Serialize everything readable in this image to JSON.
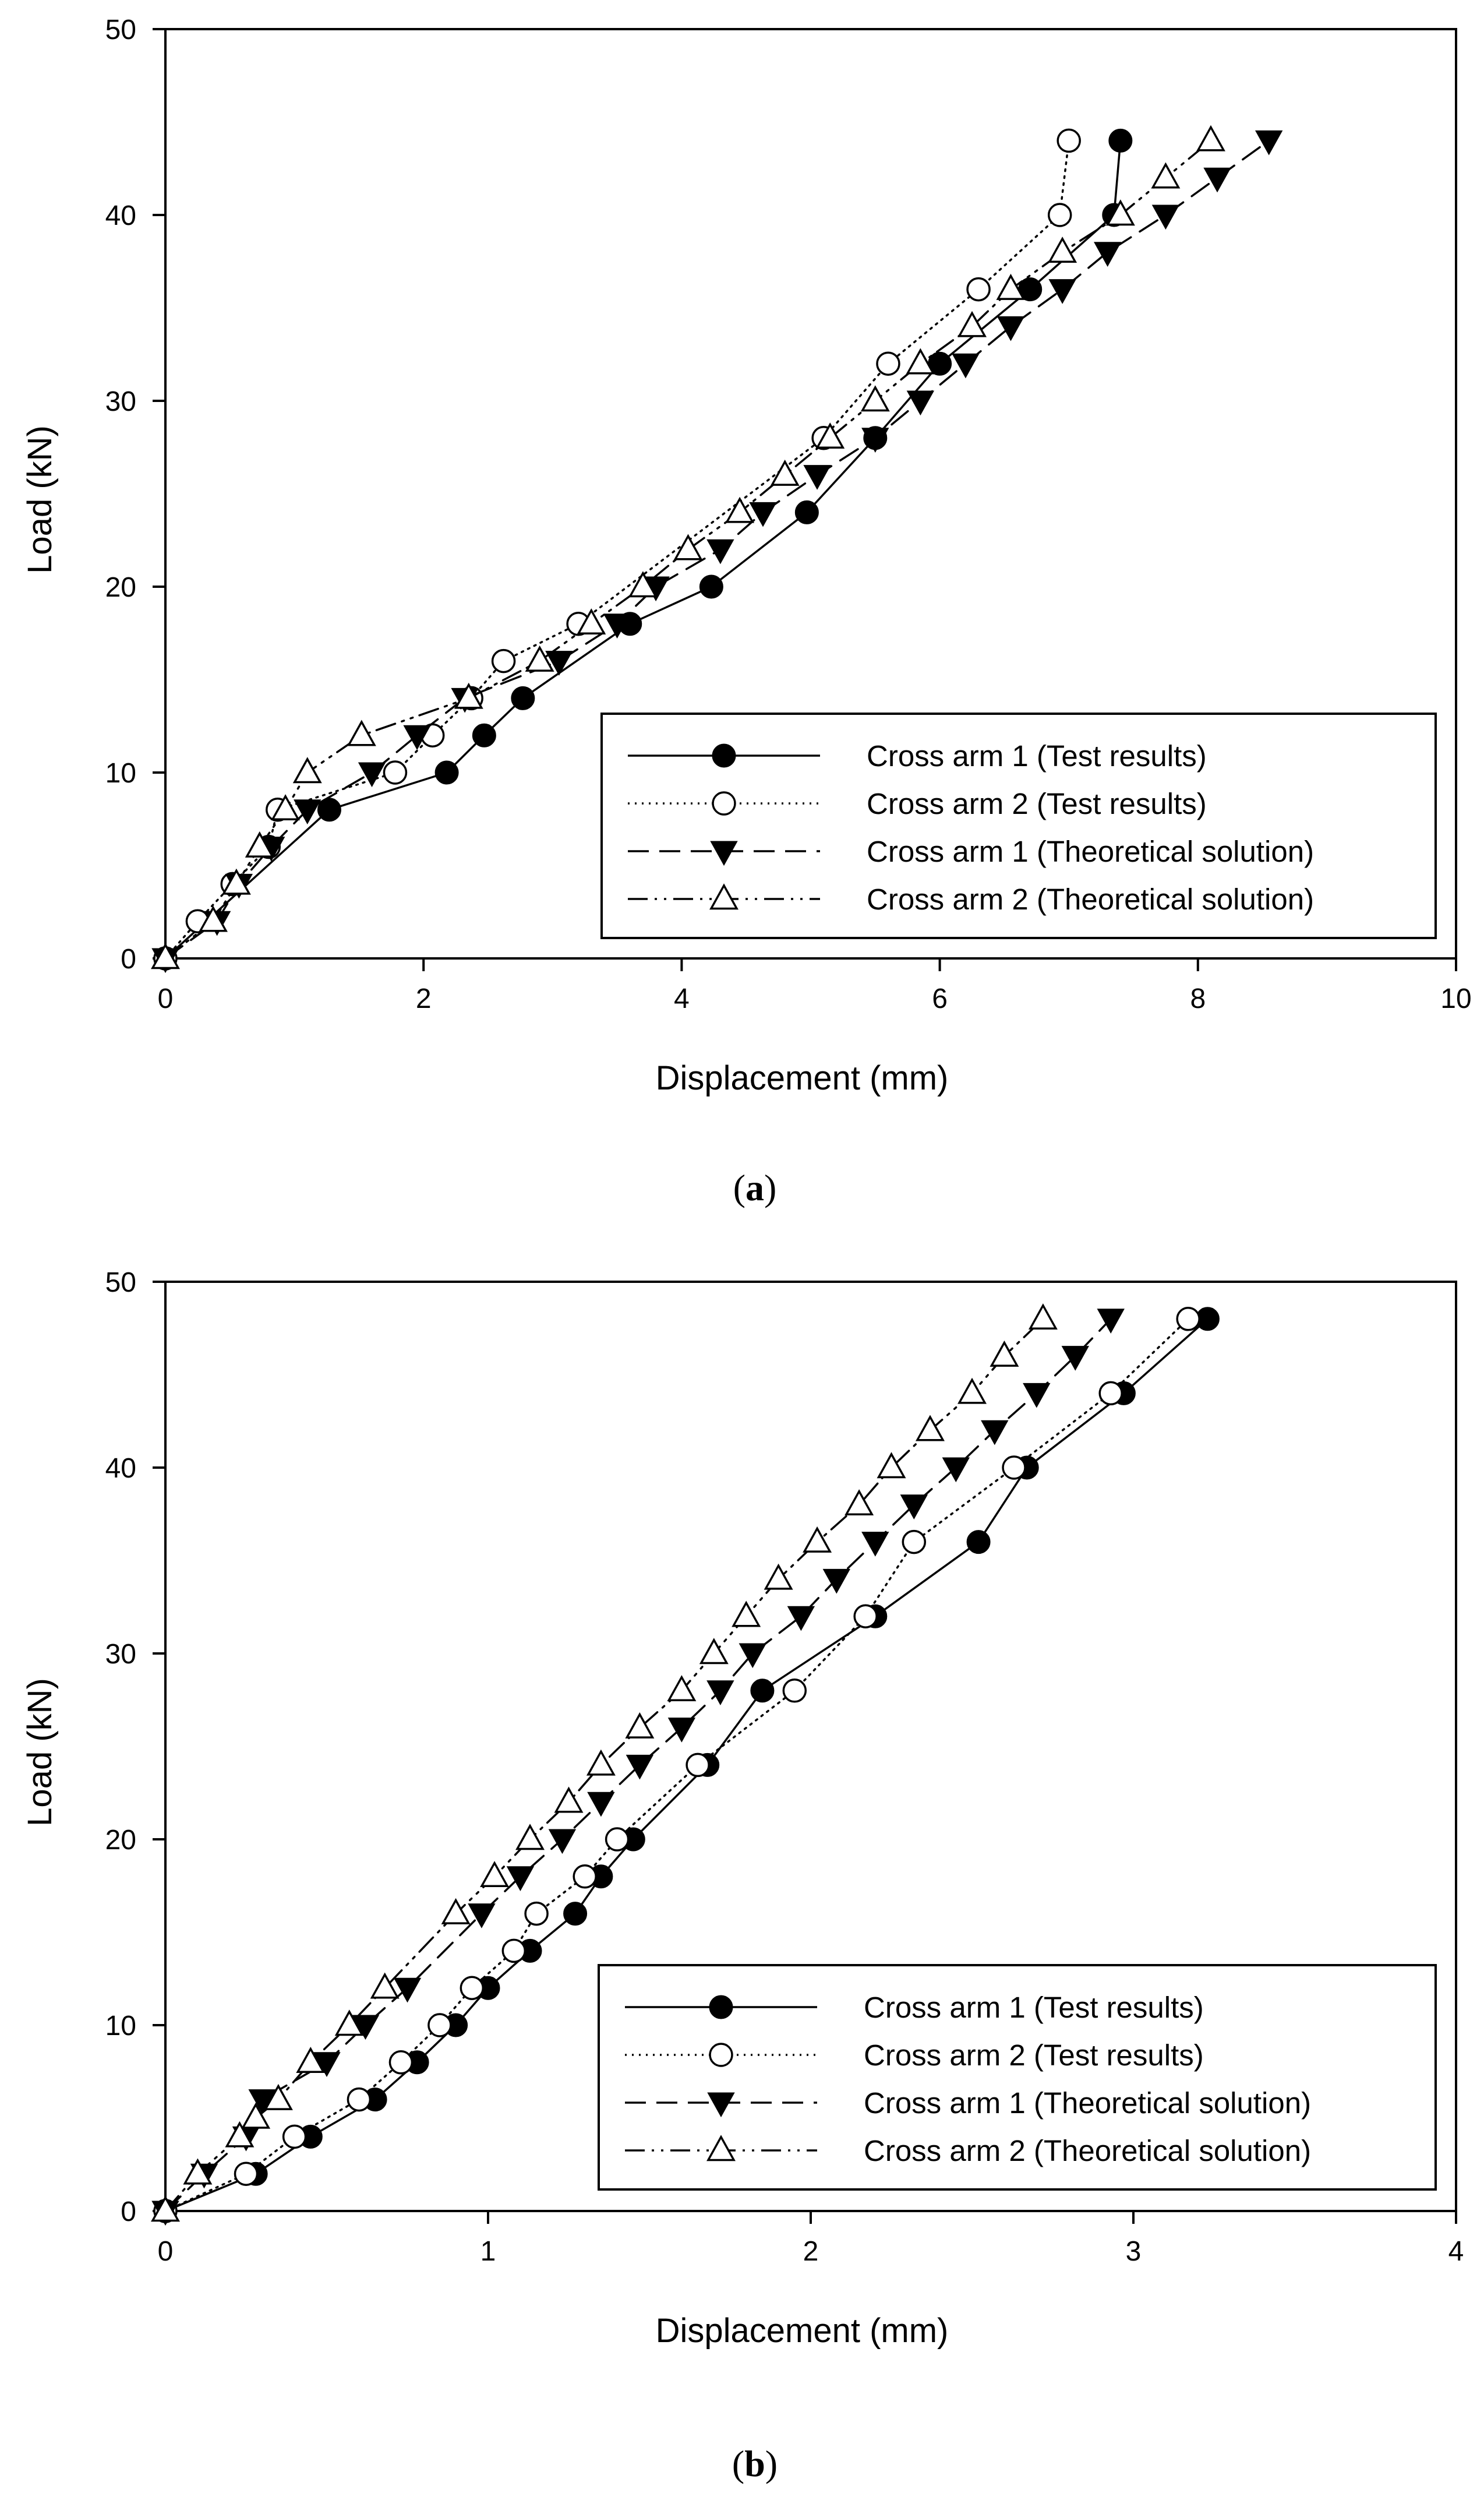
{
  "chart_data": [
    {
      "type": "line",
      "caption": "(a)",
      "caption_letter": "a",
      "xlabel": "Displacement (mm)",
      "ylabel": "Load (kN)",
      "xlim": [
        0,
        10
      ],
      "ylim": [
        0,
        50
      ],
      "xticks": [
        0,
        2,
        4,
        6,
        8,
        10
      ],
      "yticks": [
        0,
        10,
        20,
        30,
        40,
        50
      ],
      "legend_position": "lower-right",
      "series": [
        {
          "name": "Cross arm 1 (Test results)",
          "line": "solid",
          "marker": "filled-circle",
          "points": [
            [
              0,
              0
            ],
            [
              1.27,
              8
            ],
            [
              2.18,
              10
            ],
            [
              2.47,
              12
            ],
            [
              2.77,
              14
            ],
            [
              3.6,
              18
            ],
            [
              4.23,
              20
            ],
            [
              4.97,
              24
            ],
            [
              5.5,
              28
            ],
            [
              6.0,
              32
            ],
            [
              6.7,
              36
            ],
            [
              7.35,
              40
            ],
            [
              7.4,
              44
            ]
          ]
        },
        {
          "name": "Cross arm 2 (Test results)",
          "line": "dotted",
          "marker": "open-circle",
          "points": [
            [
              0,
              0
            ],
            [
              0.25,
              2
            ],
            [
              0.52,
              4
            ],
            [
              0.8,
              6
            ],
            [
              0.87,
              8
            ],
            [
              1.78,
              10
            ],
            [
              2.07,
              12
            ],
            [
              2.37,
              14
            ],
            [
              2.62,
              16
            ],
            [
              3.2,
              18
            ],
            [
              5.1,
              28
            ],
            [
              5.6,
              32
            ],
            [
              6.3,
              36
            ],
            [
              6.93,
              40
            ],
            [
              7.0,
              44
            ]
          ]
        },
        {
          "name": "Cross arm 1 (Theoretical solution)",
          "line": "dashed",
          "marker": "filled-triangle-down",
          "points": [
            [
              0,
              0
            ],
            [
              0.4,
              2
            ],
            [
              0.57,
              4
            ],
            [
              0.82,
              6
            ],
            [
              1.1,
              8
            ],
            [
              1.6,
              10
            ],
            [
              1.95,
              12
            ],
            [
              2.32,
              14
            ],
            [
              3.05,
              16
            ],
            [
              3.5,
              18
            ],
            [
              3.8,
              20
            ],
            [
              4.3,
              22
            ],
            [
              4.63,
              24
            ],
            [
              5.05,
              26
            ],
            [
              5.5,
              28
            ],
            [
              5.85,
              30
            ],
            [
              6.2,
              32
            ],
            [
              6.55,
              34
            ],
            [
              6.95,
              36
            ],
            [
              7.3,
              38
            ],
            [
              7.75,
              40
            ],
            [
              8.15,
              42
            ],
            [
              8.55,
              44
            ]
          ]
        },
        {
          "name": "Cross arm 2 (Theoretical solution)",
          "line": "dash-dot-dot",
          "marker": "open-triangle-up",
          "points": [
            [
              0,
              0
            ],
            [
              0.37,
              2
            ],
            [
              0.55,
              4
            ],
            [
              0.73,
              6
            ],
            [
              0.93,
              8
            ],
            [
              1.1,
              10
            ],
            [
              1.52,
              12
            ],
            [
              2.35,
              14
            ],
            [
              2.9,
              16
            ],
            [
              3.3,
              18
            ],
            [
              3.7,
              20
            ],
            [
              4.05,
              22
            ],
            [
              4.45,
              24
            ],
            [
              4.8,
              26
            ],
            [
              5.15,
              28
            ],
            [
              5.5,
              30
            ],
            [
              5.85,
              32
            ],
            [
              6.25,
              34
            ],
            [
              6.55,
              36
            ],
            [
              6.95,
              38
            ],
            [
              7.4,
              40
            ],
            [
              7.75,
              42
            ],
            [
              8.1,
              44
            ]
          ]
        }
      ]
    },
    {
      "type": "line",
      "caption": "(b)",
      "caption_letter": "b",
      "xlabel": "Displacement (mm)",
      "ylabel": "Load (kN)",
      "xlim": [
        0,
        4
      ],
      "ylim": [
        0,
        50
      ],
      "xticks": [
        0,
        1,
        2,
        3,
        4
      ],
      "yticks": [
        0,
        10,
        20,
        30,
        40,
        50
      ],
      "legend_position": "lower-right",
      "series": [
        {
          "name": "Cross arm 1 (Test results)",
          "line": "solid",
          "marker": "filled-circle",
          "points": [
            [
              0,
              0
            ],
            [
              0.28,
              2
            ],
            [
              0.45,
              4
            ],
            [
              0.65,
              6
            ],
            [
              0.78,
              8
            ],
            [
              0.9,
              10
            ],
            [
              1.0,
              12
            ],
            [
              1.13,
              14
            ],
            [
              1.27,
              16
            ],
            [
              1.35,
              18
            ],
            [
              1.45,
              20
            ],
            [
              1.68,
              24
            ],
            [
              1.85,
              28
            ],
            [
              2.2,
              32
            ],
            [
              2.52,
              36
            ],
            [
              2.67,
              40
            ],
            [
              2.97,
              44
            ],
            [
              3.23,
              48
            ]
          ]
        },
        {
          "name": "Cross arm 2 (Test results)",
          "line": "dotted",
          "marker": "open-circle",
          "points": [
            [
              0,
              0
            ],
            [
              0.25,
              2
            ],
            [
              0.4,
              4
            ],
            [
              0.6,
              6
            ],
            [
              0.73,
              8
            ],
            [
              0.85,
              10
            ],
            [
              0.95,
              12
            ],
            [
              1.08,
              14
            ],
            [
              1.15,
              16
            ],
            [
              1.3,
              18
            ],
            [
              1.4,
              20
            ],
            [
              1.65,
              24
            ],
            [
              1.95,
              28
            ],
            [
              2.17,
              32
            ],
            [
              2.32,
              36
            ],
            [
              2.63,
              40
            ],
            [
              2.93,
              44
            ],
            [
              3.17,
              48
            ]
          ]
        },
        {
          "name": "Cross arm 1 (Theoretical solution)",
          "line": "dashed",
          "marker": "filled-triangle-down",
          "points": [
            [
              0,
              0
            ],
            [
              0.12,
              2
            ],
            [
              0.25,
              4
            ],
            [
              0.3,
              6
            ],
            [
              0.5,
              8
            ],
            [
              0.62,
              10
            ],
            [
              0.75,
              12
            ],
            [
              0.98,
              16
            ],
            [
              1.1,
              18
            ],
            [
              1.23,
              20
            ],
            [
              1.35,
              22
            ],
            [
              1.47,
              24
            ],
            [
              1.6,
              26
            ],
            [
              1.72,
              28
            ],
            [
              1.82,
              30
            ],
            [
              1.97,
              32
            ],
            [
              2.08,
              34
            ],
            [
              2.2,
              36
            ],
            [
              2.32,
              38
            ],
            [
              2.45,
              40
            ],
            [
              2.57,
              42
            ],
            [
              2.7,
              44
            ],
            [
              2.82,
              46
            ],
            [
              2.93,
              48
            ]
          ]
        },
        {
          "name": "Cross arm 2 (Theoretical solution)",
          "line": "dash-dot-dot",
          "marker": "open-triangle-up",
          "points": [
            [
              0,
              0
            ],
            [
              0.1,
              2
            ],
            [
              0.23,
              4
            ],
            [
              0.28,
              5
            ],
            [
              0.35,
              6
            ],
            [
              0.45,
              8
            ],
            [
              0.57,
              10
            ],
            [
              0.68,
              12
            ],
            [
              0.9,
              16
            ],
            [
              1.02,
              18
            ],
            [
              1.13,
              20
            ],
            [
              1.25,
              22
            ],
            [
              1.35,
              24
            ],
            [
              1.47,
              26
            ],
            [
              1.6,
              28
            ],
            [
              1.7,
              30
            ],
            [
              1.8,
              32
            ],
            [
              1.9,
              34
            ],
            [
              2.02,
              36
            ],
            [
              2.15,
              38
            ],
            [
              2.25,
              40
            ],
            [
              2.37,
              42
            ],
            [
              2.5,
              44
            ],
            [
              2.6,
              46
            ],
            [
              2.72,
              48
            ]
          ]
        }
      ]
    }
  ]
}
